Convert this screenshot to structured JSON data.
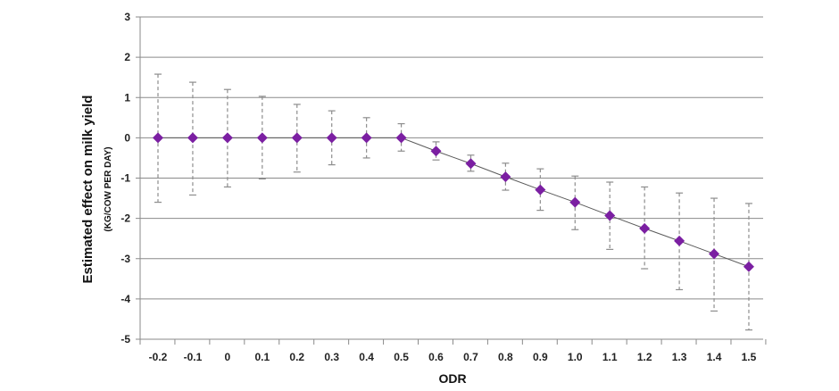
{
  "chart_data": {
    "type": "scatter",
    "title": "",
    "xlabel": "ODR",
    "ylabel": "Estimated effect on milk yield",
    "ylabel_sub": "(KG/COW PER DAY)",
    "categories": [
      "-0.2",
      "-0.1",
      "0",
      "0.1",
      "0.2",
      "0.3",
      "0.4",
      "0.5",
      "0.6",
      "0.7",
      "0.8",
      "0.9",
      "1.0",
      "1.1",
      "1.2",
      "1.3",
      "1.4",
      "1.5"
    ],
    "y_ticks": [
      "3",
      "2",
      "1",
      "0",
      "-1",
      "-2",
      "-3",
      "-4",
      "-5"
    ],
    "ylim": [
      -5,
      3
    ],
    "grid": true,
    "marker_color": "#7b1fa2",
    "series": [
      {
        "values": [
          0,
          0,
          0,
          0,
          0,
          0,
          0,
          0,
          -0.33,
          -0.64,
          -0.97,
          -1.29,
          -1.6,
          -1.93,
          -2.25,
          -2.56,
          -2.88,
          -3.2
        ],
        "lower": [
          -1.6,
          -1.42,
          -1.22,
          -1.02,
          -0.85,
          -0.67,
          -0.5,
          -0.33,
          -0.55,
          -0.83,
          -1.3,
          -1.8,
          -2.28,
          -2.77,
          -3.25,
          -3.77,
          -4.3,
          -4.77
        ],
        "upper": [
          1.58,
          1.38,
          1.2,
          1.03,
          0.83,
          0.67,
          0.5,
          0.35,
          -0.1,
          -0.43,
          -0.63,
          -0.77,
          -0.95,
          -1.1,
          -1.22,
          -1.37,
          -1.5,
          -1.63
        ]
      }
    ]
  }
}
